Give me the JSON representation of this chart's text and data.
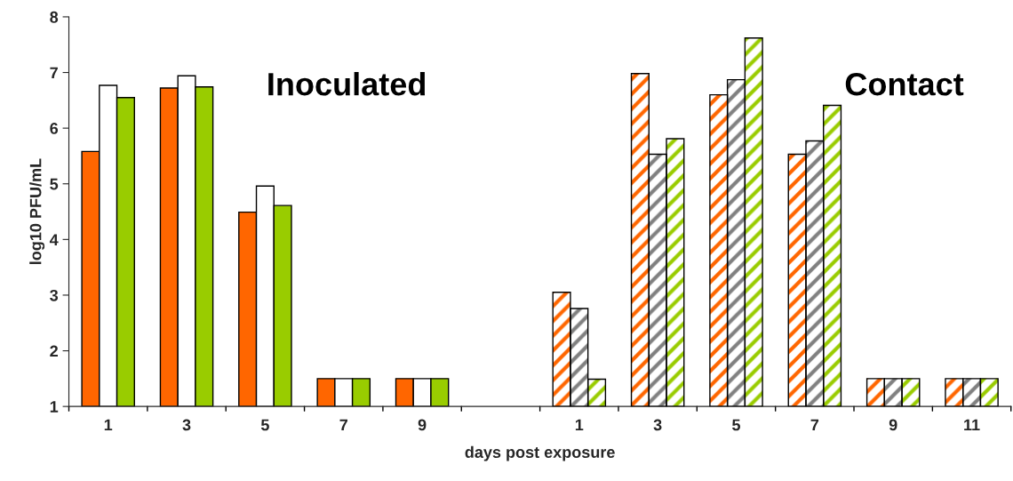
{
  "chart_data": {
    "type": "bar",
    "xlabel": "days post exposure",
    "ylabel": "log10 PFU/mL",
    "categories": [
      "1",
      "3",
      "5",
      "7",
      "9",
      null,
      "1",
      "3",
      "5",
      "7",
      "9",
      "11"
    ],
    "series": [
      {
        "color": "#ff6600",
        "values": [
          5.58,
          6.72,
          4.49,
          1.5,
          1.5,
          null,
          null,
          null,
          null,
          null,
          null,
          null
        ]
      },
      {
        "color": "#ffffff",
        "values": [
          6.77,
          6.94,
          4.96,
          1.5,
          1.5,
          null,
          null,
          null,
          null,
          null,
          null,
          null
        ]
      },
      {
        "color": "#99cc00",
        "values": [
          6.55,
          6.74,
          4.61,
          1.5,
          1.5,
          null,
          null,
          null,
          null,
          null,
          null,
          null
        ]
      },
      {
        "color": "#ff6600",
        "values": [
          null,
          null,
          null,
          null,
          null,
          null,
          3.05,
          6.98,
          6.6,
          5.53,
          1.5,
          1.5
        ]
      },
      {
        "color": "#808080",
        "values": [
          null,
          null,
          null,
          null,
          null,
          null,
          2.76,
          5.53,
          6.87,
          5.77,
          1.5,
          1.5
        ]
      },
      {
        "color": "#99cc00",
        "values": [
          null,
          null,
          null,
          null,
          null,
          null,
          1.49,
          5.81,
          7.62,
          6.41,
          1.5,
          1.5
        ]
      }
    ],
    "ylim": [
      1,
      8
    ],
    "yticks": [
      1,
      2,
      3,
      4,
      5,
      6,
      7,
      8
    ],
    "grid": false,
    "legend": false,
    "annotations": [
      "Inoculated",
      "Contact"
    ]
  }
}
